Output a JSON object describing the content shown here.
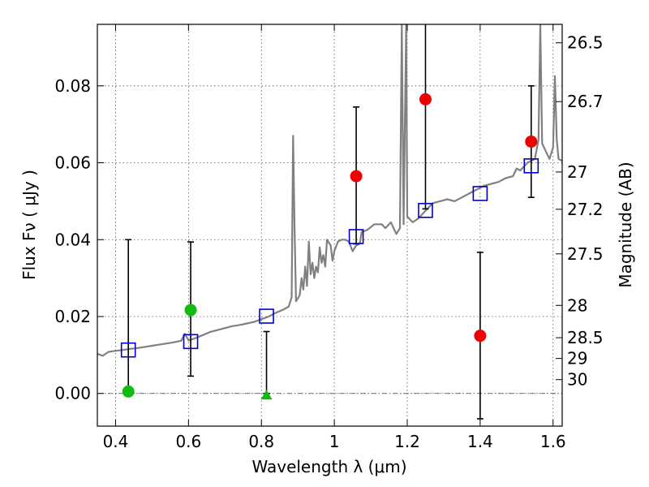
{
  "chart_data": {
    "type": "scatter",
    "xlim": [
      0.35,
      1.625
    ],
    "ylim": [
      -0.0085,
      0.096
    ],
    "x_ticks": [
      0.4,
      0.6,
      0.8,
      1.0,
      1.2,
      1.4,
      1.6
    ],
    "x_tick_labels": [
      "0.4",
      "0.6",
      "0.8",
      "1",
      "1.2",
      "1.4",
      "1.6"
    ],
    "y_ticks": [
      0.0,
      0.02,
      0.04,
      0.06,
      0.08
    ],
    "y_tick_labels": [
      "0.00",
      "0.02",
      "0.04",
      "0.06",
      "0.08"
    ],
    "right_ticks": [
      {
        "label": "26.5",
        "flux": 0.0912
      },
      {
        "label": "26.7",
        "flux": 0.0759
      },
      {
        "label": "27",
        "flux": 0.0576
      },
      {
        "label": "27.2",
        "flux": 0.0479
      },
      {
        "label": "27.5",
        "flux": 0.0363
      },
      {
        "label": "28",
        "flux": 0.0229
      },
      {
        "label": "28.5",
        "flux": 0.0145
      },
      {
        "label": "29",
        "flux": 0.0091
      },
      {
        "label": "30",
        "flux": 0.0036
      }
    ],
    "xlabel": "Wavelength  λ (μm)",
    "ylabel": "Flux  Fν  ( μJy )",
    "ylabel_right": "Magnitude (AB)",
    "grid": true,
    "zero_line": true,
    "model_spectrum": [
      [
        0.35,
        0.0103
      ],
      [
        0.365,
        0.0098
      ],
      [
        0.38,
        0.0108
      ],
      [
        0.4,
        0.0111
      ],
      [
        0.42,
        0.0113
      ],
      [
        0.44,
        0.0116
      ],
      [
        0.46,
        0.0118
      ],
      [
        0.48,
        0.0121
      ],
      [
        0.5,
        0.0124
      ],
      [
        0.52,
        0.0127
      ],
      [
        0.54,
        0.013
      ],
      [
        0.56,
        0.0133
      ],
      [
        0.58,
        0.0137
      ],
      [
        0.59,
        0.0155
      ],
      [
        0.6,
        0.0138
      ],
      [
        0.62,
        0.0144
      ],
      [
        0.64,
        0.0152
      ],
      [
        0.66,
        0.016
      ],
      [
        0.68,
        0.0165
      ],
      [
        0.7,
        0.017
      ],
      [
        0.72,
        0.0175
      ],
      [
        0.74,
        0.0178
      ],
      [
        0.76,
        0.0182
      ],
      [
        0.78,
        0.0186
      ],
      [
        0.8,
        0.0193
      ],
      [
        0.82,
        0.02
      ],
      [
        0.84,
        0.021
      ],
      [
        0.86,
        0.0218
      ],
      [
        0.875,
        0.0226
      ],
      [
        0.883,
        0.025
      ],
      [
        0.887,
        0.067
      ],
      [
        0.891,
        0.043
      ],
      [
        0.895,
        0.024
      ],
      [
        0.905,
        0.0255
      ],
      [
        0.91,
        0.03
      ],
      [
        0.915,
        0.027
      ],
      [
        0.92,
        0.033
      ],
      [
        0.925,
        0.028
      ],
      [
        0.93,
        0.0395
      ],
      [
        0.935,
        0.031
      ],
      [
        0.94,
        0.034
      ],
      [
        0.945,
        0.03
      ],
      [
        0.95,
        0.033
      ],
      [
        0.955,
        0.0315
      ],
      [
        0.96,
        0.038
      ],
      [
        0.965,
        0.034
      ],
      [
        0.97,
        0.036
      ],
      [
        0.975,
        0.033
      ],
      [
        0.98,
        0.04
      ],
      [
        0.99,
        0.0385
      ],
      [
        0.995,
        0.0345
      ],
      [
        1.0,
        0.037
      ],
      [
        1.01,
        0.0395
      ],
      [
        1.02,
        0.04
      ],
      [
        1.03,
        0.04
      ],
      [
        1.04,
        0.0395
      ],
      [
        1.05,
        0.037
      ],
      [
        1.06,
        0.0385
      ],
      [
        1.07,
        0.039
      ],
      [
        1.075,
        0.042
      ],
      [
        1.09,
        0.0425
      ],
      [
        1.11,
        0.044
      ],
      [
        1.13,
        0.044
      ],
      [
        1.14,
        0.043
      ],
      [
        1.155,
        0.0445
      ],
      [
        1.17,
        0.0415
      ],
      [
        1.18,
        0.043
      ],
      [
        1.185,
        0.096
      ],
      [
        1.19,
        0.044
      ],
      [
        1.197,
        0.096
      ],
      [
        1.2,
        0.046
      ],
      [
        1.215,
        0.0445
      ],
      [
        1.23,
        0.0455
      ],
      [
        1.245,
        0.047
      ],
      [
        1.255,
        0.048
      ],
      [
        1.27,
        0.0495
      ],
      [
        1.29,
        0.05
      ],
      [
        1.31,
        0.0505
      ],
      [
        1.33,
        0.05
      ],
      [
        1.35,
        0.051
      ],
      [
        1.37,
        0.052
      ],
      [
        1.39,
        0.053
      ],
      [
        1.41,
        0.054
      ],
      [
        1.43,
        0.0545
      ],
      [
        1.45,
        0.055
      ],
      [
        1.47,
        0.056
      ],
      [
        1.49,
        0.0565
      ],
      [
        1.5,
        0.0585
      ],
      [
        1.51,
        0.058
      ],
      [
        1.53,
        0.06
      ],
      [
        1.55,
        0.061
      ],
      [
        1.56,
        0.066
      ],
      [
        1.565,
        0.096
      ],
      [
        1.57,
        0.065
      ],
      [
        1.58,
        0.063
      ],
      [
        1.59,
        0.061
      ],
      [
        1.6,
        0.064
      ],
      [
        1.605,
        0.0825
      ],
      [
        1.61,
        0.066
      ],
      [
        1.615,
        0.061
      ],
      [
        1.625,
        0.0605
      ]
    ],
    "model_photometry": [
      {
        "x": 0.435,
        "y": 0.0113
      },
      {
        "x": 0.606,
        "y": 0.0135
      },
      {
        "x": 0.814,
        "y": 0.0201
      },
      {
        "x": 1.06,
        "y": 0.0408
      },
      {
        "x": 1.25,
        "y": 0.0476
      },
      {
        "x": 1.4,
        "y": 0.052
      },
      {
        "x": 1.54,
        "y": 0.0592
      }
    ],
    "observed_hst_acs": [
      {
        "x": 0.435,
        "y": 0.0005,
        "err_low": 0.0005,
        "err_high": 0.04
      },
      {
        "x": 0.606,
        "y": 0.0217,
        "err_low": 0.0045,
        "err_high": 0.0394
      }
    ],
    "upper_limit": [
      {
        "x": 0.814,
        "y": -0.0005,
        "err_low": 0.0,
        "err_high": 0.0161
      }
    ],
    "observed_hst_wfc3": [
      {
        "x": 1.06,
        "y": 0.0565,
        "err_low": 0.0389,
        "err_high": 0.0745
      },
      {
        "x": 1.25,
        "y": 0.0765,
        "err_low": 0.048,
        "err_high": 0.0962
      },
      {
        "x": 1.4,
        "y": 0.015,
        "err_low": -0.0066,
        "err_high": 0.0367
      },
      {
        "x": 1.54,
        "y": 0.0655,
        "err_low": 0.051,
        "err_high": 0.08
      }
    ],
    "colors": {
      "spectrum": "#808080",
      "model_box": "#0000cc",
      "acs_point": "#11bb11",
      "wfc3_point": "#ee0000",
      "grid": "#555555"
    }
  }
}
